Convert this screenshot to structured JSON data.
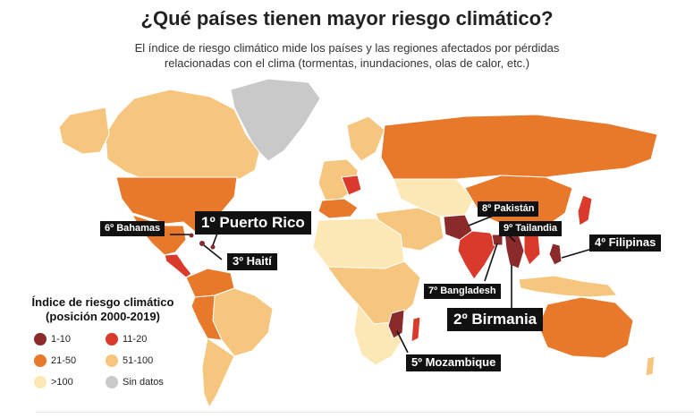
{
  "title": "¿Qué países tienen mayor riesgo climático?",
  "subtitle": "El índice de riesgo climático mide los países y las regiones afectados por pérdidas relacionadas con el clima (tormentas, inundaciones, olas de calor, etc.)",
  "colors": {
    "ocean": "#ffffff",
    "rank_1_10": "#8b2a2a",
    "rank_11_20": "#d93a2b",
    "rank_21_50": "#e8792a",
    "rank_51_100": "#f6c57e",
    "rank_over_100": "#fce8b4",
    "no_data": "#c9c9c9"
  },
  "callouts": {
    "puerto_rico": "1º Puerto Rico",
    "birmania": "2º Birmania",
    "haiti": "3º Haití",
    "filipinas": "4º Filipinas",
    "mozambique": "5º Mozambique",
    "bahamas": "6º Bahamas",
    "bangladesh": "7º Bangladesh",
    "pakistan": "8º Pakistán",
    "tailandia": "9º Tailandia"
  },
  "legend": {
    "title": "Índice de riesgo climático (posición 2000-2019)",
    "items": [
      {
        "label": "1-10",
        "color": "#8b2a2a"
      },
      {
        "label": "11-20",
        "color": "#d93a2b"
      },
      {
        "label": "21-50",
        "color": "#e8792a"
      },
      {
        "label": "51-100",
        "color": "#f6c57e"
      },
      {
        "label": ">100",
        "color": "#fce8b4"
      },
      {
        "label": "Sin datos",
        "color": "#c9c9c9"
      }
    ]
  }
}
